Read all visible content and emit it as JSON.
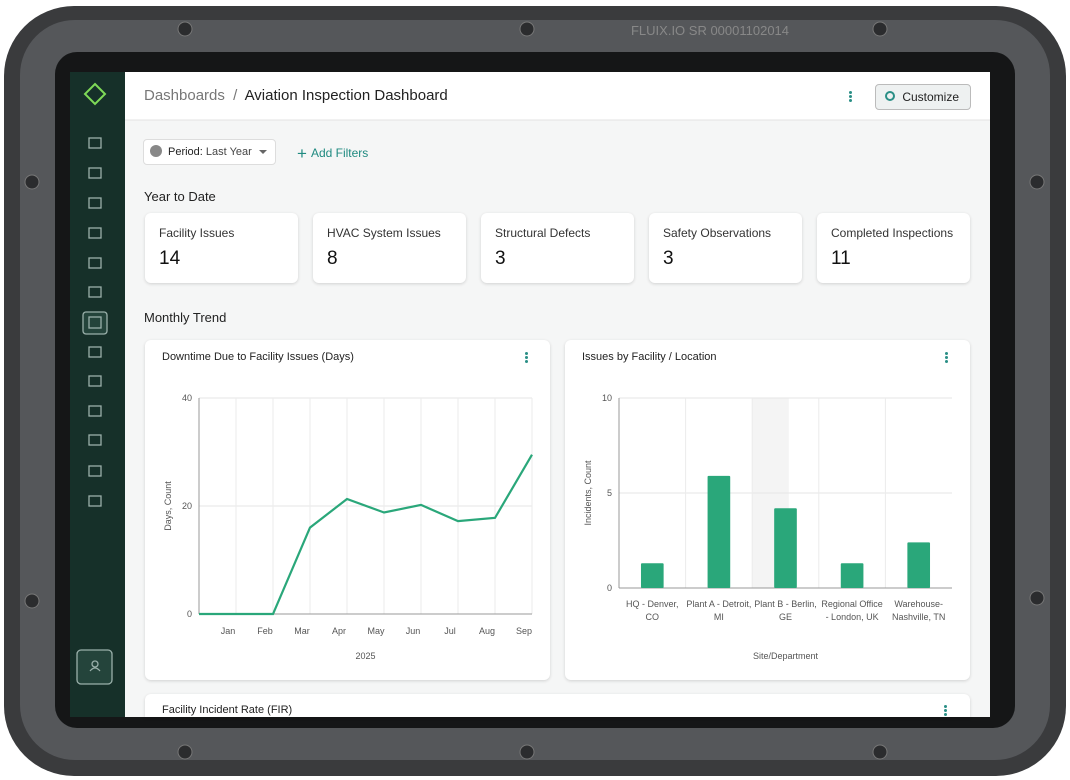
{
  "device": {
    "serial": "FLUIX.IO SR 00001102014"
  },
  "header": {
    "breadcrumb_root": "Dashboards",
    "separator": "/",
    "title": "Aviation Inspection Dashboard",
    "button": "Customize"
  },
  "filters": {
    "period_label": "Period:",
    "period_value": "Last Year",
    "add": "Add Filters"
  },
  "sections": {
    "ytd": "Year to Date",
    "trend": "Monthly Trend"
  },
  "kpis": [
    {
      "label": "Facility Issues",
      "value": "14"
    },
    {
      "label": "HVAC System Issues",
      "value": "8"
    },
    {
      "label": "Structural Defects",
      "value": "3"
    },
    {
      "label": "Safety Observations",
      "value": "3"
    },
    {
      "label": "Completed Inspections",
      "value": "11"
    }
  ],
  "chart_data": [
    {
      "type": "line",
      "title": "Downtime Due to Facility Issues (Days)",
      "x_label": "2025",
      "y_label": "Days, Count",
      "categories": [
        null,
        "Jan",
        "Feb",
        "Mar",
        "Apr",
        "May",
        "Jun",
        "Jul",
        "Aug",
        "Sep"
      ],
      "values": [
        0,
        0,
        0,
        16,
        21.3,
        18.8,
        20.2,
        17.2,
        17.8,
        29.5
      ],
      "color": "#2aa77a",
      "ylim": [
        0,
        40
      ],
      "yticks": [
        0,
        20,
        40
      ],
      "grid": true
    },
    {
      "type": "bar",
      "title": "Issues by Facility / Location",
      "x_label": "Site/Department",
      "y_label": "Incidents, Count",
      "categories": [
        "HQ - Denver, CO",
        "Plant A - Detroit, MI",
        "Plant B - Berlin, GE",
        "Regional Office - London, UK",
        "Warehouse-Nashville, TN"
      ],
      "values": [
        1.3,
        5.9,
        4.2,
        1.3,
        2.4
      ],
      "color": "#2aa77a",
      "ylim": [
        0,
        10
      ],
      "yticks": [
        0,
        5,
        10
      ],
      "grid": true
    }
  ],
  "next_card": {
    "title": "Facility Incident Rate (FIR)"
  }
}
